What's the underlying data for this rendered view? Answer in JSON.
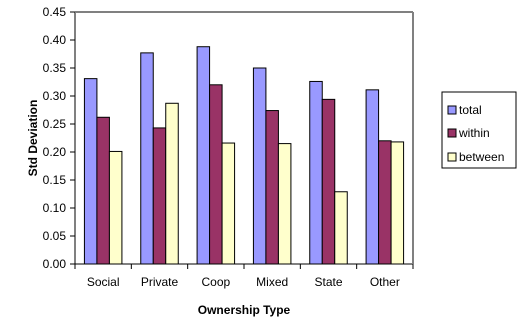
{
  "chart_data": {
    "type": "bar",
    "title": "",
    "xlabel": "Ownership Type",
    "ylabel": "Std Deviation",
    "categories": [
      "Social",
      "Private",
      "Coop",
      "Mixed",
      "State",
      "Other"
    ],
    "ylim": [
      0,
      0.45
    ],
    "yticks": [
      "0.00",
      "0.05",
      "0.10",
      "0.15",
      "0.20",
      "0.25",
      "0.30",
      "0.35",
      "0.40",
      "0.45"
    ],
    "grid": false,
    "legend_position": "right",
    "series": [
      {
        "name": "total",
        "color": "#9999ff",
        "values": [
          0.331,
          0.377,
          0.388,
          0.35,
          0.326,
          0.311
        ]
      },
      {
        "name": "within",
        "color": "#993366",
        "values": [
          0.262,
          0.243,
          0.32,
          0.274,
          0.294,
          0.22
        ]
      },
      {
        "name": "between",
        "color": "#ffffcc",
        "values": [
          0.201,
          0.287,
          0.216,
          0.215,
          0.129,
          0.218
        ]
      }
    ]
  }
}
